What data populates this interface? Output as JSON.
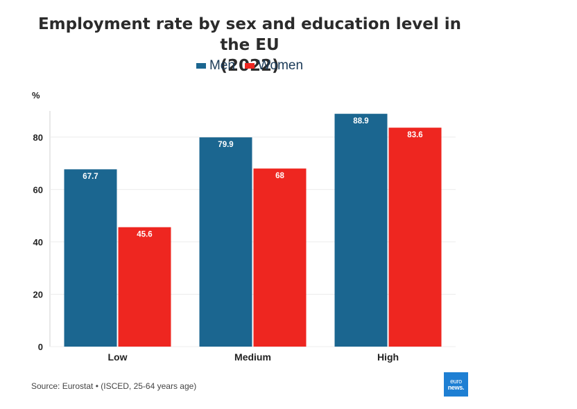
{
  "chart_data": {
    "type": "bar",
    "title": "Employment rate by sex and education level in the EU",
    "subtitle": "(2022)",
    "ylabel": "%",
    "categories": [
      "Low",
      "Medium",
      "High"
    ],
    "series": [
      {
        "name": "Men",
        "values": [
          67.7,
          79.9,
          88.9
        ],
        "color": "#1b6690",
        "labels": [
          "67.7",
          "79.9",
          "88.9"
        ]
      },
      {
        "name": "Women",
        "values": [
          45.6,
          68,
          83.6
        ],
        "color": "#ee2620",
        "labels": [
          "45.6",
          "68",
          "83.6"
        ]
      }
    ],
    "ylim": [
      0,
      90
    ],
    "yticks": [
      "0",
      "20",
      "40",
      "60",
      "80"
    ],
    "grid": true,
    "legend_position": "top"
  },
  "footer": {
    "source": "Source: Eurostat • (ISCED, 25-64 years age)",
    "logo_top": "euro",
    "logo_bottom": "news."
  }
}
